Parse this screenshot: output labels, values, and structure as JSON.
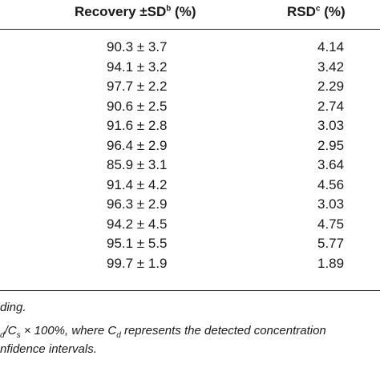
{
  "header": {
    "recovery": {
      "main": "Recovery ±SD",
      "sup": "b",
      "unit": " (%)"
    },
    "rsd": {
      "main": "RSD",
      "sup": "c",
      "unit": " (%)"
    }
  },
  "rows": [
    {
      "recovery": "90.3 ± 3.7",
      "rsd": "4.14"
    },
    {
      "recovery": "94.1 ± 3.2",
      "rsd": "3.42"
    },
    {
      "recovery": "97.7 ± 2.2",
      "rsd": "2.29"
    },
    {
      "recovery": "90.6 ± 2.5",
      "rsd": "2.74"
    },
    {
      "recovery": "91.6 ± 2.8",
      "rsd": "3.03"
    },
    {
      "recovery": "96.4 ± 2.9",
      "rsd": "2.95"
    },
    {
      "recovery": "85.9 ± 3.1",
      "rsd": "3.64"
    },
    {
      "recovery": "91.4 ± 4.2",
      "rsd": "4.56"
    },
    {
      "recovery": "96.3 ± 2.9",
      "rsd": "3.03"
    },
    {
      "recovery": "94.2 ± 4.5",
      "rsd": "4.75"
    },
    {
      "recovery": "95.1 ± 5.5",
      "rsd": "5.77"
    },
    {
      "recovery": "99.7 ± 1.9",
      "rsd": "1.89"
    }
  ],
  "footnotes": {
    "line1": "ding.",
    "line2": {
      "part1": "",
      "sub_d1": "d",
      "part2": "/C",
      "sub_s": "s",
      "part3": " × 100%, where C",
      "sub_d2": "d",
      "part4": " represents the detected concentration"
    },
    "line3": "nfidence intervals."
  }
}
